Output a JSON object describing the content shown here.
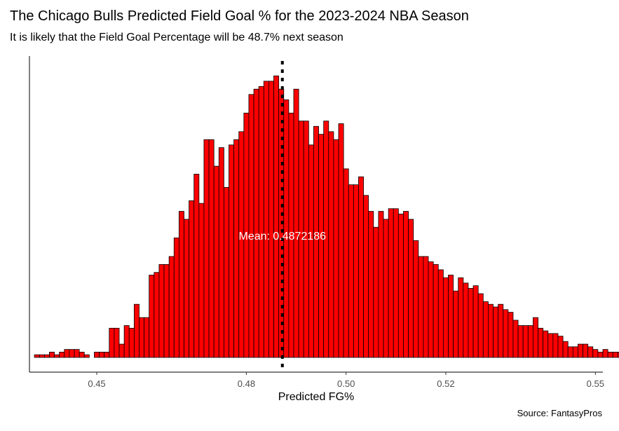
{
  "title": "The Chicago Bulls Predicted Field Goal % for the 2023-2024 NBA Season",
  "subtitle": "It is likely that the Field Goal Percentage will be 48.7% next season",
  "caption": "Source: FantasyPros",
  "colors": {
    "bar_fill": "#ff0000",
    "bar_stroke": "#000000",
    "mean_line": "#000000",
    "mean_text": "#ffffff"
  },
  "chart_data": {
    "type": "bar",
    "xlabel": "Predicted FG%",
    "ylabel": "",
    "xlim": [
      0.4365,
      0.5515
    ],
    "ylim": [
      0,
      100
    ],
    "x_ticks": [
      0.45,
      0.48,
      0.5,
      0.52,
      0.55
    ],
    "x_tick_labels": [
      "0.45",
      "0.48",
      "0.50",
      "0.52",
      "0.55"
    ],
    "y_axis_labels_shown": false,
    "grid": false,
    "bin_width": 0.001,
    "bin_start": 0.4375,
    "counts": [
      1,
      1,
      1,
      2,
      1,
      2,
      3,
      3,
      3,
      2,
      1,
      0,
      2,
      2,
      2,
      11,
      11,
      5,
      12,
      11,
      20,
      15,
      15,
      31,
      32,
      35,
      35,
      38,
      45,
      55,
      52,
      59,
      69,
      58,
      82,
      82,
      72,
      79,
      64,
      80,
      82,
      85,
      92,
      99,
      101,
      102,
      104,
      104,
      106,
      101,
      97,
      92,
      101,
      89,
      89,
      80,
      87,
      84,
      89,
      85,
      82,
      88,
      71,
      65,
      65,
      68,
      61,
      55,
      49,
      55,
      52,
      56,
      56,
      54,
      55,
      52,
      44,
      38,
      38,
      36,
      35,
      33,
      30,
      31,
      25,
      30,
      28,
      26,
      27,
      24,
      21,
      20,
      19,
      20,
      18,
      17,
      14,
      12,
      12,
      12,
      15,
      11,
      10,
      9,
      9,
      8,
      6,
      4,
      4,
      5,
      5,
      4,
      3,
      2,
      3,
      2,
      2,
      2,
      2,
      2,
      1,
      1
    ],
    "mean_value": 0.4872186,
    "mean_label": "Mean: 0.4872186"
  }
}
